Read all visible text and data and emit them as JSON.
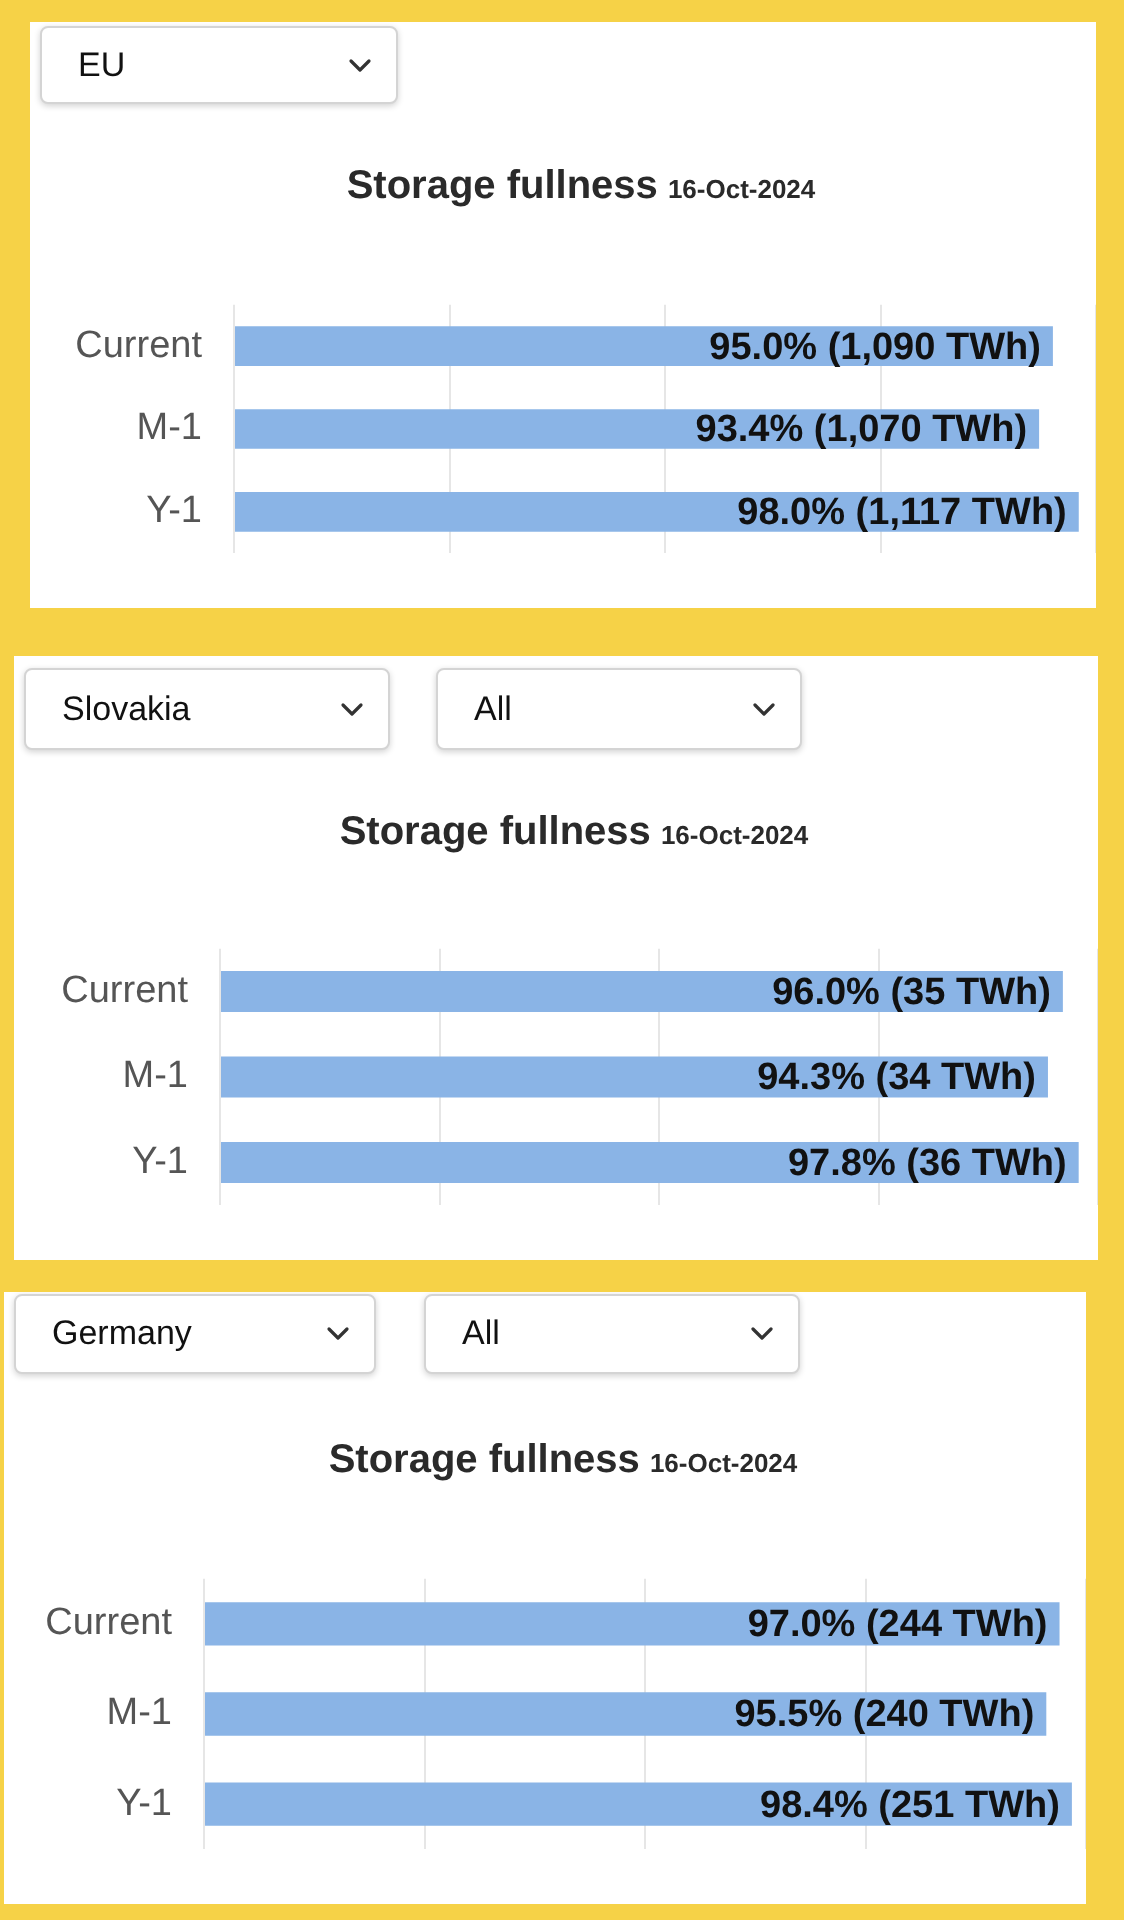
{
  "chart_data": [
    {
      "type": "bar",
      "orientation": "horizontal",
      "title": "Storage fullness",
      "subtitle": "16-Oct-2024",
      "annotations": [
        "EU"
      ],
      "categories": [
        "Current",
        "M-1",
        "Y-1"
      ],
      "values": [
        95.0,
        93.4,
        98.0
      ],
      "value_labels": [
        "95.0% (1,090 TWh)",
        "93.4% (1,070 TWh)",
        "98.0% (1,117 TWh)"
      ],
      "color": "#8ab4e6",
      "xlim": [
        0,
        100
      ],
      "xticks": [
        {
          "value": 0,
          "label": null
        },
        {
          "value": 25,
          "label": null
        },
        {
          "value": 50,
          "label": null
        },
        {
          "value": 75,
          "label": null
        },
        {
          "value": 100,
          "label": null
        }
      ],
      "grid": "x",
      "tick_labels": "y"
    },
    {
      "type": "bar",
      "orientation": "horizontal",
      "title": "Storage fullness",
      "subtitle": "16-Oct-2024",
      "annotations": [
        "Slovakia",
        "All"
      ],
      "categories": [
        "Current",
        "M-1",
        "Y-1"
      ],
      "values": [
        96.0,
        94.3,
        97.8
      ],
      "value_labels": [
        "96.0% (35 TWh)",
        "94.3% (34 TWh)",
        "97.8% (36 TWh)"
      ],
      "color": "#8ab4e6",
      "xlim": [
        0,
        100
      ],
      "xticks": [
        {
          "value": 0,
          "label": null
        },
        {
          "value": 25,
          "label": null
        },
        {
          "value": 50,
          "label": null
        },
        {
          "value": 75,
          "label": null
        },
        {
          "value": 100,
          "label": null
        }
      ],
      "grid": "x",
      "tick_labels": "y"
    },
    {
      "type": "bar",
      "orientation": "horizontal",
      "title": "Storage fullness",
      "subtitle": "16-Oct-2024",
      "annotations": [
        "Germany",
        "All"
      ],
      "categories": [
        "Current",
        "M-1",
        "Y-1"
      ],
      "values": [
        97.0,
        95.5,
        98.4
      ],
      "value_labels": [
        "97.0% (244 TWh)",
        "95.5% (240 TWh)",
        "98.4% (251 TWh)"
      ],
      "color": "#8ab4e6",
      "xlim": [
        0,
        100
      ],
      "xticks": [
        {
          "value": 0,
          "label": null
        },
        {
          "value": 25,
          "label": null
        },
        {
          "value": 50,
          "label": null
        },
        {
          "value": 75,
          "label": null
        },
        {
          "value": 100,
          "label": null
        }
      ],
      "grid": "x",
      "tick_labels": "y"
    }
  ]
}
